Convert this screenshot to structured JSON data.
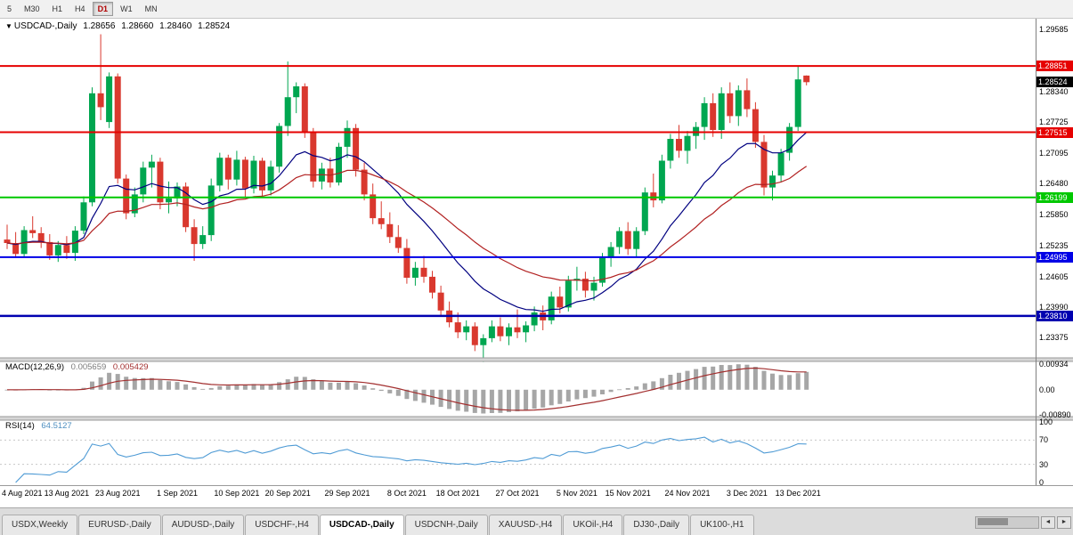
{
  "toolbar": {
    "timeframes": [
      {
        "label": "5",
        "active": false
      },
      {
        "label": "M30",
        "active": false
      },
      {
        "label": "H1",
        "active": false
      },
      {
        "label": "H4",
        "active": false
      },
      {
        "label": "D1",
        "active": true
      },
      {
        "label": "W1",
        "active": false
      },
      {
        "label": "MN",
        "active": false
      }
    ]
  },
  "chart": {
    "info": {
      "dropdown_icon": "▼",
      "symbol": "USDCAD-,Daily",
      "open": "1.28656",
      "high": "1.28660",
      "low": "1.28460",
      "close": "1.28524"
    }
  },
  "macd": {
    "title": "MACD(12,26,9)",
    "value_main": "0.005659",
    "value_signal": "0.005429",
    "fast": 12,
    "slow": 26,
    "signal": 9,
    "scale": [
      "0.00934",
      "0.00",
      "-0.00890"
    ],
    "scale_values": [
      0.00934,
      0,
      -0.0089
    ],
    "hist_color": "#a6a6a6",
    "line_color": "#a33030"
  },
  "rsi": {
    "title": "RSI(14)",
    "value": "64.5127",
    "period": 14,
    "scale": [
      "100",
      "70",
      "30",
      "0"
    ],
    "scale_values": [
      100,
      70,
      30,
      0
    ],
    "levels": [
      70,
      30
    ],
    "line_color": "#4f9bd5"
  },
  "tabs": {
    "scroll_left_icon": "◄",
    "scroll_right_icon": "►",
    "items": [
      {
        "label": "USDX,Weekly",
        "active": false
      },
      {
        "label": "EURUSD-,Daily",
        "active": false
      },
      {
        "label": "AUDUSD-,Daily",
        "active": false
      },
      {
        "label": "USDCHF-,H4",
        "active": false
      },
      {
        "label": "USDCAD-,Daily",
        "active": true
      },
      {
        "label": "USDCNH-,Daily",
        "active": false
      },
      {
        "label": "XAUUSD-,H4",
        "active": false
      },
      {
        "label": "UKOil-,H4",
        "active": false
      },
      {
        "label": "DJ30-,Daily",
        "active": false
      },
      {
        "label": "UK100-,H1",
        "active": false
      }
    ]
  },
  "chart_data": {
    "type": "candlestick",
    "symbol": "USDCAD",
    "timeframe": "Daily",
    "up_color": "#00a650",
    "down_color": "#d9382e",
    "y_range": [
      1.23,
      1.2975
    ],
    "y_axis_labels": [
      "1.29585",
      "1.28340",
      "1.27725",
      "1.27095",
      "1.26480",
      "1.25850",
      "1.25235",
      "1.24605",
      "1.23990",
      "1.23375"
    ],
    "x_axis_labels": [
      {
        "text": "4 Aug 2021",
        "bar": 0
      },
      {
        "text": "13 Aug 2021",
        "bar": 7
      },
      {
        "text": "23 Aug 2021",
        "bar": 13
      },
      {
        "text": "1 Sep 2021",
        "bar": 20
      },
      {
        "text": "10 Sep 2021",
        "bar": 27
      },
      {
        "text": "20 Sep 2021",
        "bar": 33
      },
      {
        "text": "29 Sep 2021",
        "bar": 40
      },
      {
        "text": "8 Oct 2021",
        "bar": 47
      },
      {
        "text": "18 Oct 2021",
        "bar": 53
      },
      {
        "text": "27 Oct 2021",
        "bar": 60
      },
      {
        "text": "5 Nov 2021",
        "bar": 67
      },
      {
        "text": "15 Nov 2021",
        "bar": 73
      },
      {
        "text": "24 Nov 2021",
        "bar": 80
      },
      {
        "text": "3 Dec 2021",
        "bar": 87
      },
      {
        "text": "13 Dec 2021",
        "bar": 93
      }
    ],
    "horizontal_lines": [
      {
        "label": "1.28851",
        "value": 1.28851,
        "color": "#e60000",
        "width": 2
      },
      {
        "label": "1.27515",
        "value": 1.27515,
        "color": "#e60000",
        "width": 2
      },
      {
        "label": "1.26199",
        "value": 1.26199,
        "color": "#00c800",
        "width": 2
      },
      {
        "label": "1.24995",
        "value": 1.24995,
        "color": "#0000e6",
        "width": 2
      },
      {
        "label": "1.23810",
        "value": 1.2381,
        "color": "#0000b0",
        "width": 2.5
      }
    ],
    "current_price": {
      "label": "1.28524",
      "value": 1.28524,
      "bg": "#000000"
    },
    "ma_lines": [
      {
        "period": 14,
        "color": "#000080"
      },
      {
        "period": 30,
        "color": "#b22222"
      }
    ],
    "candles": [
      [
        1.2535,
        1.2565,
        1.2516,
        1.2528
      ],
      [
        1.2528,
        1.255,
        1.2498,
        1.2506
      ],
      [
        1.2506,
        1.2562,
        1.25,
        1.2554
      ],
      [
        1.2554,
        1.2582,
        1.2538,
        1.2548
      ],
      [
        1.2548,
        1.256,
        1.2518,
        1.253
      ],
      [
        1.253,
        1.2546,
        1.2494,
        1.2503
      ],
      [
        1.2503,
        1.2532,
        1.249,
        1.2524
      ],
      [
        1.2524,
        1.2542,
        1.2496,
        1.2508
      ],
      [
        1.2508,
        1.2562,
        1.2492,
        1.2553
      ],
      [
        1.2553,
        1.2622,
        1.2546,
        1.261
      ],
      [
        1.261,
        1.2842,
        1.2602,
        1.283
      ],
      [
        1.283,
        1.2949,
        1.2776,
        1.2802
      ],
      [
        1.2772,
        1.2872,
        1.276,
        1.2864
      ],
      [
        1.2864,
        1.287,
        1.2648,
        1.2658
      ],
      [
        1.2658,
        1.2666,
        1.2576,
        1.2588
      ],
      [
        1.2588,
        1.264,
        1.258,
        1.2626
      ],
      [
        1.2626,
        1.2692,
        1.261,
        1.268
      ],
      [
        1.268,
        1.2706,
        1.264,
        1.2692
      ],
      [
        1.2692,
        1.27,
        1.2596,
        1.261
      ],
      [
        1.261,
        1.2652,
        1.2588,
        1.2618
      ],
      [
        1.2618,
        1.265,
        1.2602,
        1.2642
      ],
      [
        1.2642,
        1.265,
        1.255,
        1.256
      ],
      [
        1.256,
        1.2576,
        1.2492,
        1.2526
      ],
      [
        1.2526,
        1.2562,
        1.2516,
        1.2544
      ],
      [
        1.2544,
        1.2658,
        1.2532,
        1.2644
      ],
      [
        1.2644,
        1.271,
        1.2632,
        1.27
      ],
      [
        1.27,
        1.2706,
        1.2636,
        1.2656
      ],
      [
        1.2656,
        1.2714,
        1.2644,
        1.2696
      ],
      [
        1.2696,
        1.2702,
        1.262,
        1.2638
      ],
      [
        1.2638,
        1.2704,
        1.2628,
        1.2694
      ],
      [
        1.2694,
        1.27,
        1.262,
        1.2634
      ],
      [
        1.2634,
        1.2694,
        1.2624,
        1.2682
      ],
      [
        1.2682,
        1.277,
        1.267,
        1.2764
      ],
      [
        1.2764,
        1.2894,
        1.2744,
        1.2822
      ],
      [
        1.2822,
        1.2852,
        1.279,
        1.2844
      ],
      [
        1.2844,
        1.285,
        1.274,
        1.2752
      ],
      [
        1.2752,
        1.276,
        1.264,
        1.2652
      ],
      [
        1.2652,
        1.269,
        1.2636,
        1.2678
      ],
      [
        1.2678,
        1.27,
        1.264,
        1.265
      ],
      [
        1.265,
        1.273,
        1.2644,
        1.2722
      ],
      [
        1.2722,
        1.2775,
        1.27,
        1.276
      ],
      [
        1.276,
        1.2768,
        1.2662,
        1.2676
      ],
      [
        1.2676,
        1.269,
        1.2614,
        1.2626
      ],
      [
        1.2626,
        1.2648,
        1.2566,
        1.2578
      ],
      [
        1.2578,
        1.2612,
        1.2556,
        1.2566
      ],
      [
        1.2566,
        1.259,
        1.2528,
        1.254
      ],
      [
        1.254,
        1.2564,
        1.2508,
        1.2518
      ],
      [
        1.2518,
        1.2536,
        1.2446,
        1.2458
      ],
      [
        1.2458,
        1.249,
        1.2442,
        1.2478
      ],
      [
        1.2478,
        1.2502,
        1.2448,
        1.246
      ],
      [
        1.246,
        1.2472,
        1.2416,
        1.2428
      ],
      [
        1.2428,
        1.2442,
        1.238,
        1.2392
      ],
      [
        1.2392,
        1.241,
        1.2358,
        1.2368
      ],
      [
        1.2368,
        1.2388,
        1.2336,
        1.2348
      ],
      [
        1.2348,
        1.2372,
        1.2332,
        1.236
      ],
      [
        1.236,
        1.2368,
        1.231,
        1.2322
      ],
      [
        1.2322,
        1.2344,
        1.2288,
        1.2336
      ],
      [
        1.2336,
        1.2372,
        1.2328,
        1.236
      ],
      [
        1.236,
        1.2378,
        1.233,
        1.234
      ],
      [
        1.234,
        1.2366,
        1.2322,
        1.2358
      ],
      [
        1.2358,
        1.2394,
        1.2336,
        1.2348
      ],
      [
        1.2348,
        1.237,
        1.2328,
        1.2362
      ],
      [
        1.2362,
        1.24,
        1.235,
        1.2388
      ],
      [
        1.2388,
        1.2402,
        1.2352,
        1.2372
      ],
      [
        1.2372,
        1.243,
        1.2364,
        1.242
      ],
      [
        1.242,
        1.244,
        1.2386,
        1.2398
      ],
      [
        1.2398,
        1.2462,
        1.239,
        1.2452
      ],
      [
        1.2452,
        1.248,
        1.2432,
        1.2456
      ],
      [
        1.2456,
        1.247,
        1.2418,
        1.2432
      ],
      [
        1.2432,
        1.246,
        1.2412,
        1.2448
      ],
      [
        1.2448,
        1.2508,
        1.244,
        1.2498
      ],
      [
        1.2498,
        1.253,
        1.248,
        1.252
      ],
      [
        1.252,
        1.256,
        1.2506,
        1.2552
      ],
      [
        1.2552,
        1.257,
        1.2504,
        1.2516
      ],
      [
        1.2516,
        1.256,
        1.25,
        1.2552
      ],
      [
        1.2552,
        1.264,
        1.2544,
        1.263
      ],
      [
        1.263,
        1.2668,
        1.26,
        1.2614
      ],
      [
        1.2614,
        1.2706,
        1.2608,
        1.2694
      ],
      [
        1.2694,
        1.2748,
        1.2678,
        1.2738
      ],
      [
        1.2738,
        1.2766,
        1.27,
        1.2714
      ],
      [
        1.2714,
        1.2754,
        1.2688,
        1.2744
      ],
      [
        1.2744,
        1.2772,
        1.2718,
        1.2762
      ],
      [
        1.2762,
        1.2822,
        1.2736,
        1.281
      ],
      [
        1.281,
        1.283,
        1.2742,
        1.2756
      ],
      [
        1.2756,
        1.2842,
        1.2738,
        1.283
      ],
      [
        1.283,
        1.2852,
        1.277,
        1.2784
      ],
      [
        1.2784,
        1.2846,
        1.2764,
        1.2836
      ],
      [
        1.2836,
        1.286,
        1.2782,
        1.2798
      ],
      [
        1.2798,
        1.2812,
        1.272,
        1.2732
      ],
      [
        1.2732,
        1.2746,
        1.2624,
        1.264
      ],
      [
        1.264,
        1.2674,
        1.2614,
        1.2664
      ],
      [
        1.2664,
        1.2718,
        1.265,
        1.271
      ],
      [
        1.271,
        1.277,
        1.2694,
        1.2762
      ],
      [
        1.2762,
        1.2886,
        1.2754,
        1.2858
      ],
      [
        1.28656,
        1.2866,
        1.2846,
        1.28524
      ]
    ]
  }
}
